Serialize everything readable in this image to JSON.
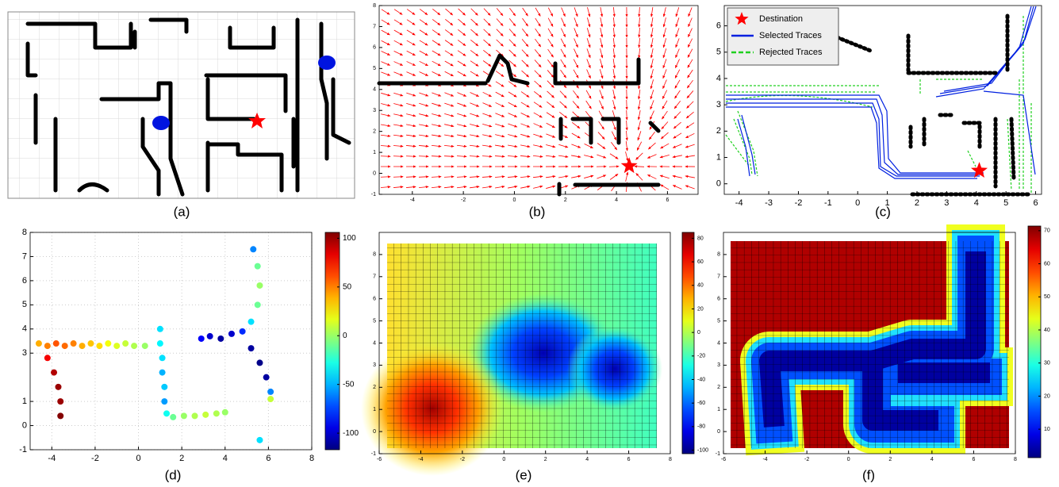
{
  "chart_data": [
    {
      "type": "image",
      "caption": "(a)"
    },
    {
      "type": "vector_field",
      "caption": "(b)",
      "xlim": [
        -5.3,
        7.2
      ],
      "ylim": [
        -1,
        8
      ],
      "xticks": [
        -4,
        -2,
        0,
        2,
        4,
        6
      ],
      "yticks": [
        -1,
        0,
        1,
        2,
        3,
        4,
        5,
        6,
        7,
        8
      ],
      "destination": {
        "x": 4.5,
        "y": 0.35
      },
      "color": "#ff0000"
    },
    {
      "type": "trace",
      "caption": "(c)",
      "xlim": [
        -4.5,
        6.2
      ],
      "ylim": [
        -0.4,
        6.77
      ],
      "xticks": [
        -4,
        -3,
        -2,
        -1,
        0,
        1,
        2,
        3,
        4,
        5,
        6
      ],
      "yticks": [
        0,
        1,
        2,
        3,
        4,
        5,
        6
      ],
      "series": [
        {
          "name": "Destination",
          "color": "#ff0000",
          "x": [
            4.1
          ],
          "values": [
            0.5
          ]
        },
        {
          "name": "Selected Traces",
          "color": "#0020e0"
        },
        {
          "name": "Rejected Traces",
          "color": "#20d020"
        }
      ]
    },
    {
      "type": "scatter",
      "caption": "(d)",
      "xlim": [
        -5,
        8
      ],
      "ylim": [
        -1,
        8
      ],
      "xticks": [
        -4,
        -2,
        0,
        2,
        4,
        6,
        8
      ],
      "yticks": [
        -1,
        0,
        1,
        3,
        4,
        5,
        6,
        7,
        8
      ],
      "grid": true,
      "clim": [
        -117,
        106
      ],
      "cticks": [
        100,
        50,
        0,
        -50,
        -100
      ],
      "x": [
        -4.6,
        -4.2,
        -3.8,
        -3.4,
        -3,
        -2.6,
        -2.2,
        -1.8,
        -1.4,
        -1,
        -0.6,
        -0.2,
        0.3,
        -4.2,
        -3.9,
        -3.7,
        -3.6,
        -3.6,
        1,
        1,
        1.1,
        1.1,
        1.2,
        1.2,
        1.3,
        1.6,
        2.1,
        2.6,
        3.1,
        3.6,
        4,
        2.9,
        3.3,
        3.8,
        4.3,
        4.8,
        5.2,
        5.5,
        5.6,
        5.5,
        5.3,
        5.2,
        5.6,
        5.9,
        6.1,
        6.1,
        5.6
      ],
      "values": [
        3.4,
        3.3,
        3.4,
        3.3,
        3.4,
        3.3,
        3.4,
        3.3,
        3.4,
        3.3,
        3.4,
        3.3,
        3.3,
        2.8,
        2.2,
        1.6,
        1,
        0.4,
        4,
        3.4,
        2.8,
        2.2,
        1.6,
        1,
        0.5,
        0.35,
        0.4,
        0.4,
        0.45,
        0.5,
        0.55,
        3.6,
        3.7,
        3.6,
        3.8,
        3.9,
        4.3,
        5,
        5.8,
        6.6,
        7.3,
        3.2,
        2.6,
        2,
        1.4,
        1.1,
        -0.6
      ],
      "color_values": [
        40,
        50,
        60,
        55,
        50,
        40,
        35,
        30,
        20,
        15,
        10,
        5,
        0,
        80,
        95,
        100,
        100,
        105,
        -40,
        -35,
        -40,
        -50,
        -45,
        -55,
        -30,
        -10,
        0,
        5,
        10,
        5,
        0,
        -90,
        -100,
        -110,
        -100,
        -80,
        -40,
        -10,
        0,
        -10,
        -60,
        -110,
        -115,
        -110,
        -60,
        10,
        -40
      ]
    },
    {
      "type": "heatmap",
      "caption": "(e)",
      "xlim": [
        -6,
        8
      ],
      "ylim": [
        -1,
        9
      ],
      "xticks": [
        -6,
        -4,
        -2,
        0,
        2,
        4,
        6,
        8
      ],
      "yticks": [
        -1,
        0,
        1,
        2,
        3,
        4,
        5,
        6,
        7,
        8
      ],
      "clim": [
        -103,
        85
      ],
      "cticks": [
        80,
        60,
        40,
        20,
        0,
        -20,
        -40,
        -60,
        -80,
        -100
      ]
    },
    {
      "type": "heatmap",
      "caption": "(f)",
      "xlim": [
        -6,
        8
      ],
      "ylim": [
        -1,
        9
      ],
      "xticks": [
        -6,
        -4,
        -2,
        0,
        2,
        4,
        6,
        8
      ],
      "yticks": [
        -1,
        0,
        1,
        2,
        3,
        4,
        5,
        6,
        7,
        8
      ],
      "clim": [
        1.4,
        71.4
      ],
      "cticks": [
        70,
        60,
        50,
        40,
        30,
        20,
        10
      ]
    }
  ]
}
